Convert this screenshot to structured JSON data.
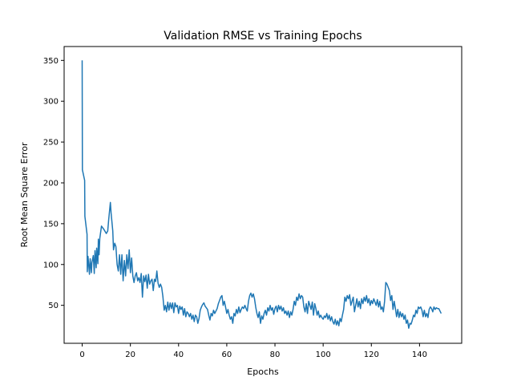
{
  "chart_data": {
    "type": "line",
    "title": "Validation RMSE vs Training Epochs",
    "xlabel": "Epochs",
    "ylabel": "Root Mean Square Error",
    "xlim": [
      -7.5,
      157.5
    ],
    "ylim": [
      3.5,
      367
    ],
    "xticks": [
      0,
      20,
      40,
      60,
      80,
      100,
      120,
      140
    ],
    "yticks": [
      50,
      100,
      150,
      200,
      250,
      300,
      350
    ],
    "grid": false,
    "series": [
      {
        "color": "#1f77b4",
        "points": [
          [
            0,
            350
          ],
          [
            0.1,
            216
          ],
          [
            1,
            203
          ],
          [
            1.1,
            159
          ],
          [
            2,
            137
          ],
          [
            2.1,
            91
          ],
          [
            2.4,
            110
          ],
          [
            3,
            88
          ],
          [
            3.3,
            107
          ],
          [
            3.8,
            90
          ],
          [
            4,
            102
          ],
          [
            4.6,
            111
          ],
          [
            5,
            89
          ],
          [
            5.3,
            117
          ],
          [
            5.8,
            96
          ],
          [
            6,
            120
          ],
          [
            6.5,
            101
          ],
          [
            6.7,
            131
          ],
          [
            7,
            112
          ],
          [
            7.3,
            132
          ],
          [
            8,
            147
          ],
          [
            9,
            143
          ],
          [
            10,
            138
          ],
          [
            10.6,
            141
          ],
          [
            11,
            155
          ],
          [
            11.7,
            176
          ],
          [
            12,
            163
          ],
          [
            12.7,
            141
          ],
          [
            13,
            118
          ],
          [
            13.5,
            126
          ],
          [
            14,
            122
          ],
          [
            14.5,
            100
          ],
          [
            15,
            92
          ],
          [
            15.5,
            112
          ],
          [
            16,
            88
          ],
          [
            16.5,
            112
          ],
          [
            17,
            80
          ],
          [
            17.5,
            105
          ],
          [
            18,
            86
          ],
          [
            18.5,
            112
          ],
          [
            19,
            95
          ],
          [
            19.5,
            118
          ],
          [
            20,
            90
          ],
          [
            20.5,
            108
          ],
          [
            21,
            86
          ],
          [
            21.5,
            78
          ],
          [
            22,
            86
          ],
          [
            22.5,
            90
          ],
          [
            23,
            80
          ],
          [
            23.5,
            84
          ],
          [
            24,
            78
          ],
          [
            24.5,
            89
          ],
          [
            25,
            60
          ],
          [
            25.5,
            86
          ],
          [
            26,
            79
          ],
          [
            26.5,
            87
          ],
          [
            27,
            71
          ],
          [
            27.5,
            88
          ],
          [
            28,
            76
          ],
          [
            28.5,
            80
          ],
          [
            29,
            82
          ],
          [
            29.5,
            68
          ],
          [
            30,
            82
          ],
          [
            30.5,
            79
          ],
          [
            31,
            92
          ],
          [
            31.5,
            77
          ],
          [
            32,
            72
          ],
          [
            32.5,
            76
          ],
          [
            33,
            72
          ],
          [
            33.5,
            61
          ],
          [
            34,
            44
          ],
          [
            34.5,
            50
          ],
          [
            35,
            42
          ],
          [
            35.5,
            54
          ],
          [
            36,
            44
          ],
          [
            36.5,
            53
          ],
          [
            37,
            46
          ],
          [
            37.5,
            53
          ],
          [
            38,
            41
          ],
          [
            38.5,
            53
          ],
          [
            39,
            48
          ],
          [
            39.5,
            50
          ],
          [
            40,
            40
          ],
          [
            40.5,
            49
          ],
          [
            41,
            45
          ],
          [
            41.5,
            48
          ],
          [
            42,
            38
          ],
          [
            42.5,
            46
          ],
          [
            43,
            36
          ],
          [
            43.5,
            42
          ],
          [
            44,
            40
          ],
          [
            44.5,
            36
          ],
          [
            45,
            40
          ],
          [
            45.5,
            33
          ],
          [
            46,
            38
          ],
          [
            46.5,
            30
          ],
          [
            47,
            38
          ],
          [
            47.5,
            36
          ],
          [
            48,
            28
          ],
          [
            48.5,
            34
          ],
          [
            49,
            44
          ],
          [
            49.5,
            48
          ],
          [
            50,
            51
          ],
          [
            50.5,
            53
          ],
          [
            51,
            49
          ],
          [
            52,
            45
          ],
          [
            52.5,
            38
          ],
          [
            53,
            32
          ],
          [
            53.5,
            40
          ],
          [
            54,
            37
          ],
          [
            54.5,
            44
          ],
          [
            55,
            40
          ],
          [
            56,
            46
          ],
          [
            56.5,
            52
          ],
          [
            57,
            56
          ],
          [
            57.5,
            60
          ],
          [
            58,
            62
          ],
          [
            58.5,
            50
          ],
          [
            59,
            55
          ],
          [
            59.5,
            48
          ],
          [
            60,
            40
          ],
          [
            60.5,
            45
          ],
          [
            61,
            38
          ],
          [
            61.5,
            33
          ],
          [
            62,
            36
          ],
          [
            62.5,
            28
          ],
          [
            63,
            40
          ],
          [
            63.5,
            37
          ],
          [
            64,
            45
          ],
          [
            64.5,
            40
          ],
          [
            65,
            48
          ],
          [
            65.5,
            41
          ],
          [
            66,
            45
          ],
          [
            66.5,
            48
          ],
          [
            67,
            46
          ],
          [
            67.5,
            50
          ],
          [
            68,
            46
          ],
          [
            68.5,
            43
          ],
          [
            69,
            55
          ],
          [
            69.5,
            62
          ],
          [
            70,
            65
          ],
          [
            70.5,
            60
          ],
          [
            71,
            64
          ],
          [
            71.5,
            58
          ],
          [
            72,
            48
          ],
          [
            72.5,
            40
          ],
          [
            73,
            35
          ],
          [
            73.5,
            42
          ],
          [
            74,
            28
          ],
          [
            74.5,
            37
          ],
          [
            75,
            33
          ],
          [
            75.5,
            40
          ],
          [
            76,
            44
          ],
          [
            76.5,
            38
          ],
          [
            77,
            47
          ],
          [
            77.5,
            43
          ],
          [
            78,
            50
          ],
          [
            78.5,
            44
          ],
          [
            79,
            47
          ],
          [
            79.5,
            39
          ],
          [
            80,
            46
          ],
          [
            80.5,
            49
          ],
          [
            81,
            42
          ],
          [
            81.5,
            50
          ],
          [
            82,
            45
          ],
          [
            82.5,
            49
          ],
          [
            83,
            43
          ],
          [
            83.5,
            47
          ],
          [
            84,
            40
          ],
          [
            84.5,
            43
          ],
          [
            85,
            38
          ],
          [
            85.5,
            43
          ],
          [
            86,
            35
          ],
          [
            86.5,
            42
          ],
          [
            87,
            38
          ],
          [
            87.5,
            45
          ],
          [
            88,
            55
          ],
          [
            88.5,
            50
          ],
          [
            89,
            60
          ],
          [
            89.5,
            56
          ],
          [
            90,
            64
          ],
          [
            90.5,
            58
          ],
          [
            91,
            62
          ],
          [
            91.5,
            60
          ],
          [
            92,
            48
          ],
          [
            92.5,
            42
          ],
          [
            93,
            52
          ],
          [
            93.5,
            40
          ],
          [
            94,
            55
          ],
          [
            94.5,
            50
          ],
          [
            95,
            45
          ],
          [
            95.5,
            54
          ],
          [
            96,
            38
          ],
          [
            96.5,
            52
          ],
          [
            97,
            46
          ],
          [
            97.5,
            38
          ],
          [
            98,
            43
          ],
          [
            98.5,
            35
          ],
          [
            99,
            38
          ],
          [
            99.5,
            35
          ],
          [
            100,
            33
          ],
          [
            100.5,
            37
          ],
          [
            101,
            35
          ],
          [
            101.5,
            40
          ],
          [
            102,
            33
          ],
          [
            102.5,
            38
          ],
          [
            103,
            31
          ],
          [
            103.5,
            36
          ],
          [
            104,
            30
          ],
          [
            104.5,
            27
          ],
          [
            105,
            33
          ],
          [
            105.5,
            26
          ],
          [
            106,
            31
          ],
          [
            106.5,
            25
          ],
          [
            107,
            34
          ],
          [
            107.5,
            30
          ],
          [
            108,
            38
          ],
          [
            108.5,
            45
          ],
          [
            109,
            60
          ],
          [
            109.5,
            55
          ],
          [
            110,
            62
          ],
          [
            110.5,
            58
          ],
          [
            111,
            63
          ],
          [
            111.5,
            50
          ],
          [
            112,
            55
          ],
          [
            112.5,
            60
          ],
          [
            113,
            42
          ],
          [
            113.5,
            50
          ],
          [
            114,
            58
          ],
          [
            114.5,
            48
          ],
          [
            115,
            55
          ],
          [
            115.5,
            46
          ],
          [
            116,
            58
          ],
          [
            116.5,
            52
          ],
          [
            117,
            60
          ],
          [
            117.5,
            55
          ],
          [
            118,
            62
          ],
          [
            118.5,
            53
          ],
          [
            119,
            58
          ],
          [
            119.5,
            50
          ],
          [
            120,
            56
          ],
          [
            120.5,
            52
          ],
          [
            121,
            58
          ],
          [
            121.5,
            54
          ],
          [
            122,
            50
          ],
          [
            122.5,
            57
          ],
          [
            123,
            48
          ],
          [
            123.5,
            55
          ],
          [
            124,
            45
          ],
          [
            124.5,
            48
          ],
          [
            125,
            42
          ],
          [
            125.5,
            55
          ],
          [
            126,
            78
          ],
          [
            126.5,
            76
          ],
          [
            127,
            72
          ],
          [
            127.5,
            68
          ],
          [
            128,
            56
          ],
          [
            128.5,
            62
          ],
          [
            129,
            45
          ],
          [
            129.5,
            55
          ],
          [
            130,
            46
          ],
          [
            130.5,
            36
          ],
          [
            131,
            45
          ],
          [
            131.5,
            35
          ],
          [
            132,
            42
          ],
          [
            132.5,
            36
          ],
          [
            133,
            40
          ],
          [
            133.5,
            33
          ],
          [
            134,
            38
          ],
          [
            134.5,
            28
          ],
          [
            135,
            32
          ],
          [
            135.5,
            22
          ],
          [
            136,
            28
          ],
          [
            136.5,
            27
          ],
          [
            137,
            32
          ],
          [
            137.5,
            38
          ],
          [
            138,
            36
          ],
          [
            138.5,
            44
          ],
          [
            139,
            40
          ],
          [
            139.5,
            48
          ],
          [
            140,
            46
          ],
          [
            140.5,
            48
          ],
          [
            141,
            44
          ],
          [
            141.5,
            36
          ],
          [
            142,
            44
          ],
          [
            142.5,
            36
          ],
          [
            143,
            40
          ],
          [
            143.5,
            35
          ],
          [
            144,
            45
          ],
          [
            144.5,
            48
          ],
          [
            145,
            46
          ],
          [
            145.5,
            42
          ],
          [
            146,
            48
          ],
          [
            146.5,
            45
          ],
          [
            147,
            47
          ],
          [
            147.5,
            46
          ],
          [
            148,
            46
          ],
          [
            149,
            40
          ]
        ]
      }
    ]
  }
}
